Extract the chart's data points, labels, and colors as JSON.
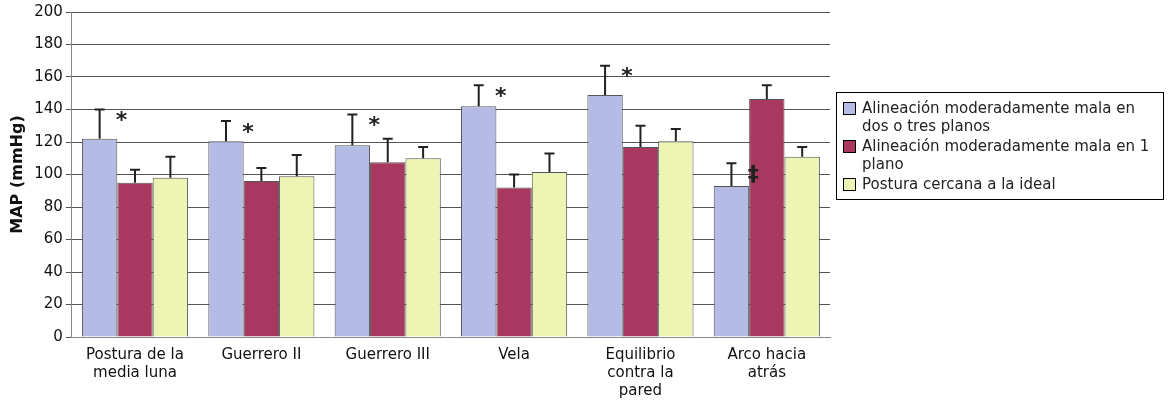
{
  "chart_data": {
    "type": "bar",
    "ylabel": "MAP (mmHg)",
    "categories": [
      "Postura de la media luna",
      "Guerrero II",
      "Guerrero III",
      "Vela",
      "Equilibrio contra la pared",
      "Arco hacia atrás"
    ],
    "series": [
      {
        "name": "Alineación moderadamente mala en dos o tres planos",
        "color": "#b4bce6",
        "values": [
          122,
          120.5,
          118,
          142,
          149,
          93
        ],
        "errors": [
          [
            122,
            140
          ],
          [
            120.5,
            133
          ],
          [
            118,
            137
          ],
          [
            142,
            155
          ],
          [
            149,
            167
          ],
          [
            93,
            107
          ]
        ]
      },
      {
        "name": "Alineación moderadamente mala en 1 plano",
        "color": "#a8385f",
        "values": [
          95,
          96,
          107.5,
          92,
          117,
          146.5
        ],
        "errors": [
          [
            95,
            103
          ],
          [
            96,
            104
          ],
          [
            107.5,
            122
          ],
          [
            92,
            100
          ],
          [
            117,
            130
          ],
          [
            146.5,
            155
          ]
        ]
      },
      {
        "name": "Postura cercana a la ideal",
        "color": "#eef4b4",
        "values": [
          98,
          99,
          110,
          101.5,
          120.5,
          111
        ],
        "errors": [
          [
            98,
            111
          ],
          [
            99,
            112
          ],
          [
            110,
            117
          ],
          [
            101.5,
            113
          ],
          [
            120.5,
            128
          ],
          [
            111,
            117
          ]
        ]
      }
    ],
    "annotations": [
      "*",
      "*",
      "*",
      "*",
      "*",
      "‡"
    ],
    "ylim": [
      0,
      200
    ],
    "yticks": [
      0,
      20,
      40,
      60,
      80,
      100,
      120,
      140,
      160,
      180,
      200
    ],
    "grid": "y",
    "legend": "right"
  }
}
